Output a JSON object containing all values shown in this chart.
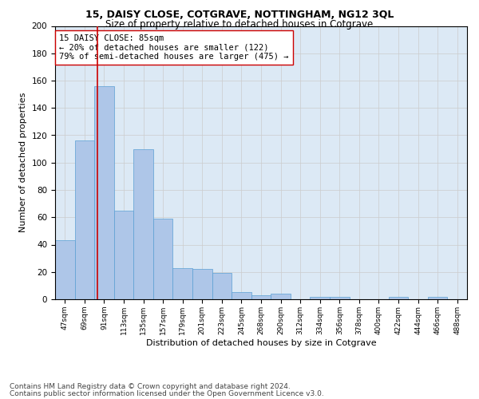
{
  "title1": "15, DAISY CLOSE, COTGRAVE, NOTTINGHAM, NG12 3QL",
  "title2": "Size of property relative to detached houses in Cotgrave",
  "xlabel": "Distribution of detached houses by size in Cotgrave",
  "ylabel": "Number of detached properties",
  "footer1": "Contains HM Land Registry data © Crown copyright and database right 2024.",
  "footer2": "Contains public sector information licensed under the Open Government Licence v3.0.",
  "categories": [
    "47sqm",
    "69sqm",
    "91sqm",
    "113sqm",
    "135sqm",
    "157sqm",
    "179sqm",
    "201sqm",
    "223sqm",
    "245sqm",
    "268sqm",
    "290sqm",
    "312sqm",
    "334sqm",
    "356sqm",
    "378sqm",
    "400sqm",
    "422sqm",
    "444sqm",
    "466sqm",
    "488sqm"
  ],
  "values": [
    43,
    116,
    156,
    65,
    110,
    59,
    23,
    22,
    19,
    5,
    3,
    4,
    0,
    2,
    2,
    0,
    0,
    2,
    0,
    2,
    0
  ],
  "bar_color": "#aec6e8",
  "bar_edge_color": "#5a9fd4",
  "annotation_box_text": "15 DAISY CLOSE: 85sqm\n← 20% of detached houses are smaller (122)\n79% of semi-detached houses are larger (475) →",
  "annotation_line_color": "#cc0000",
  "annotation_box_color": "#ffffff",
  "annotation_box_edge_color": "#cc0000",
  "ylim": [
    0,
    200
  ],
  "yticks": [
    0,
    20,
    40,
    60,
    80,
    100,
    120,
    140,
    160,
    180,
    200
  ],
  "grid_color": "#cccccc",
  "plot_bg_color": "#dce9f5",
  "title1_fontsize": 9,
  "title2_fontsize": 8.5,
  "xlabel_fontsize": 8,
  "ylabel_fontsize": 8,
  "annotation_fontsize": 7.5,
  "footer_fontsize": 6.5,
  "bar_width": 1.0,
  "line_x_index": 1.67
}
